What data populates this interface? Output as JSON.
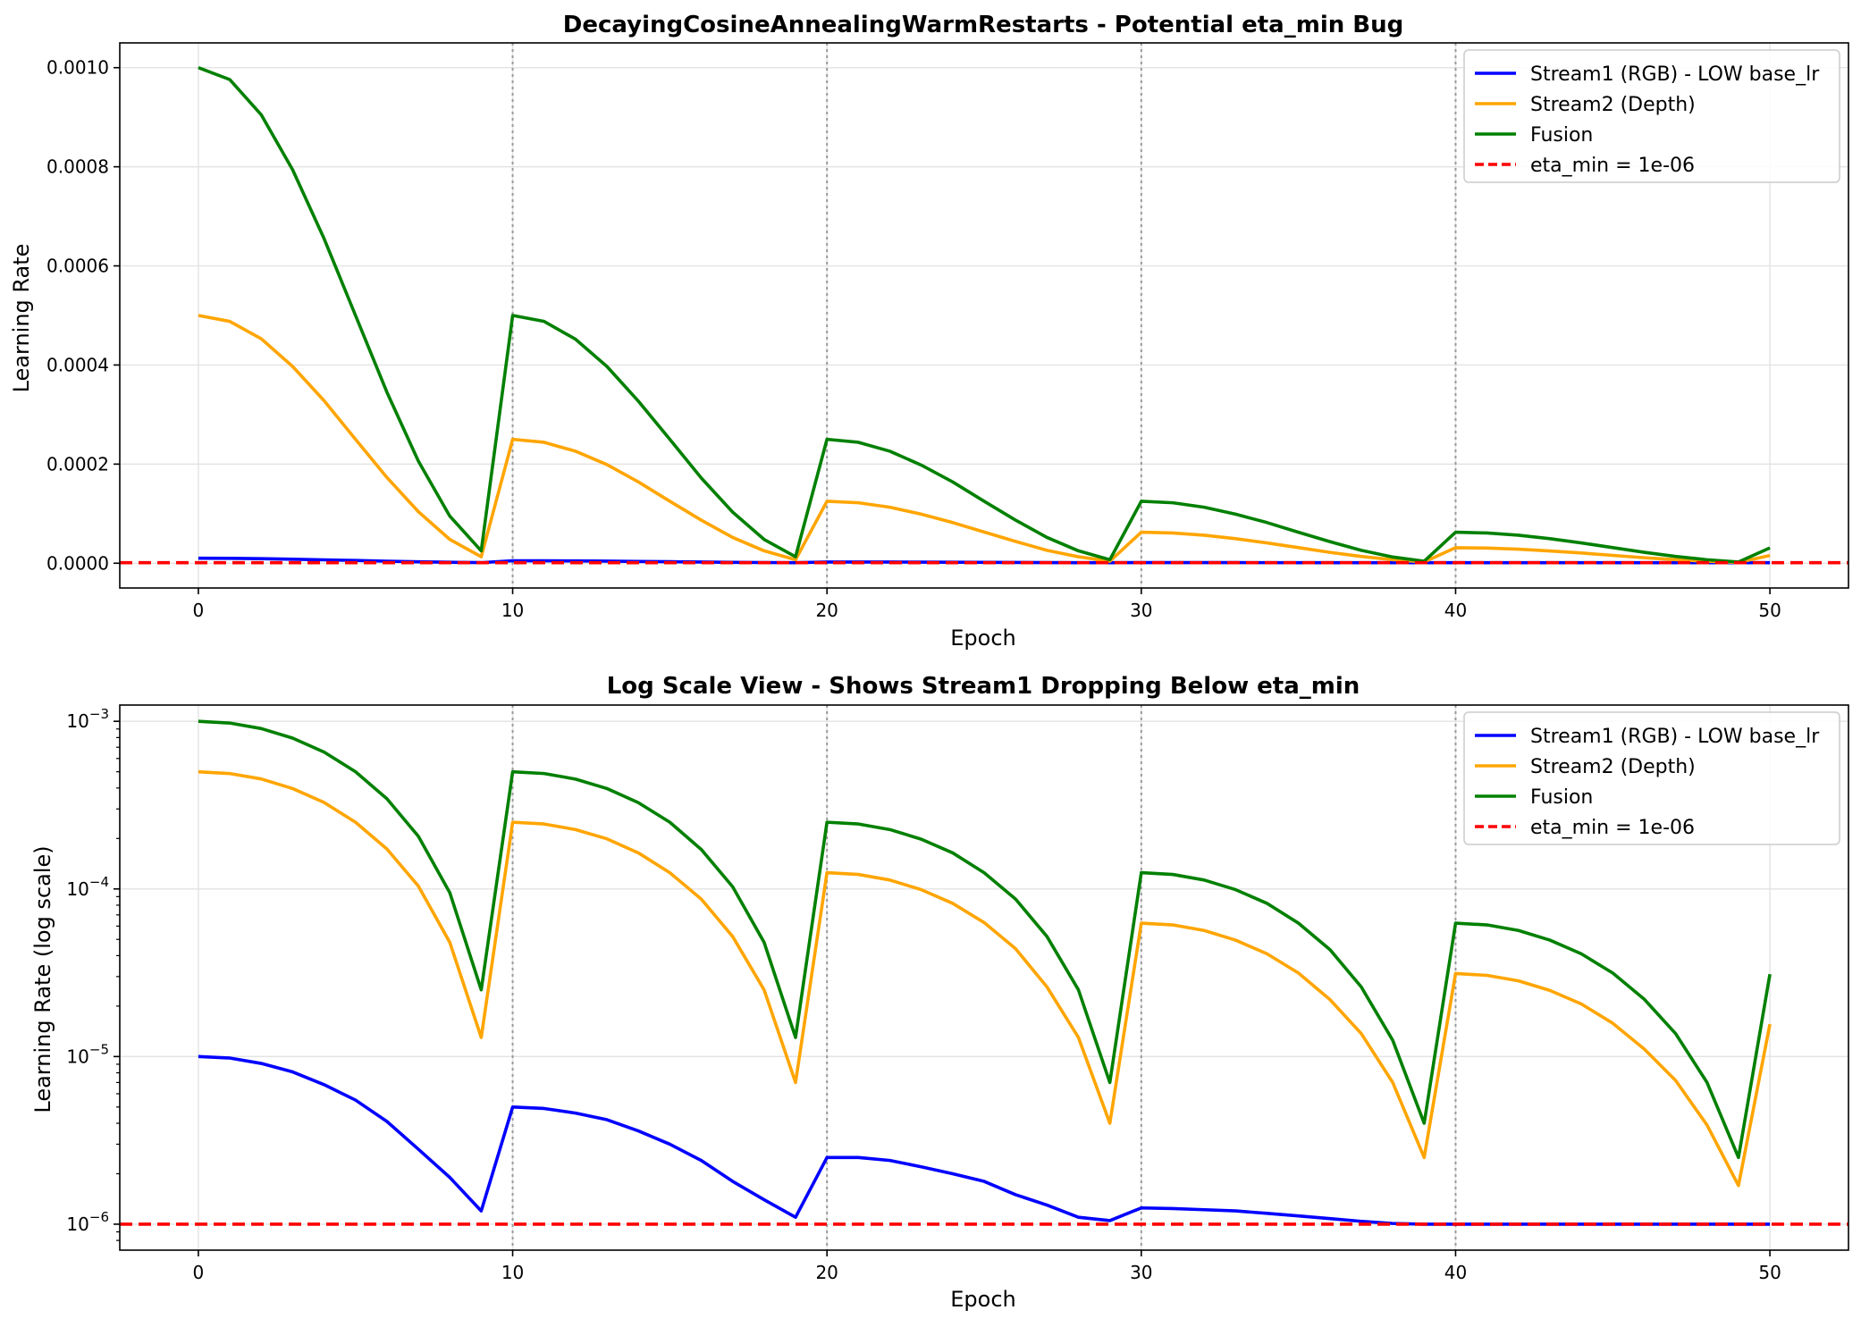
{
  "chart_data": [
    {
      "type": "line",
      "title": "DecayingCosineAnnealingWarmRestarts - Potential eta_min Bug",
      "xlabel": "Epoch",
      "ylabel": "Learning Rate",
      "yscale": "linear",
      "xlim": [
        -2.5,
        52.5
      ],
      "ylim": [
        -5e-05,
        0.00105
      ],
      "xticks": [
        0,
        10,
        20,
        30,
        40,
        50
      ],
      "xtick_labels": [
        "0",
        "10",
        "20",
        "30",
        "40",
        "50"
      ],
      "yticks": [
        0,
        0.0002,
        0.0004,
        0.0006,
        0.0008,
        0.001
      ],
      "ytick_labels": [
        "0.0000",
        "0.0002",
        "0.0004",
        "0.0006",
        "0.0008",
        "0.0010"
      ],
      "restart_lines": [
        10,
        20,
        30,
        40
      ],
      "grid": true,
      "legend_position": "top-right",
      "legend": [
        {
          "label": "Stream1 (RGB) - LOW base_lr",
          "color": "#0000ff",
          "dash": false
        },
        {
          "label": "Stream2 (Depth)",
          "color": "#ffa500",
          "dash": false
        },
        {
          "label": "Fusion",
          "color": "#008000",
          "dash": false
        },
        {
          "label": "eta_min = 1e-06",
          "color": "#ff0000",
          "dash": true
        }
      ],
      "eta_min": 1e-06,
      "series_source": "shared"
    },
    {
      "type": "line",
      "title": "Log Scale View - Shows Stream1 Dropping Below eta_min",
      "xlabel": "Epoch",
      "ylabel": "Learning Rate (log scale)",
      "yscale": "log",
      "xlim": [
        -2.5,
        52.5
      ],
      "ylim": [
        7e-07,
        0.00125
      ],
      "xticks": [
        0,
        10,
        20,
        30,
        40,
        50
      ],
      "xtick_labels": [
        "0",
        "10",
        "20",
        "30",
        "40",
        "50"
      ],
      "yticks": [
        1e-06,
        1e-05,
        0.0001,
        0.001
      ],
      "ytick_labels": [
        {
          "base": "10",
          "exp": "−6"
        },
        {
          "base": "10",
          "exp": "−5"
        },
        {
          "base": "10",
          "exp": "−4"
        },
        {
          "base": "10",
          "exp": "−3"
        }
      ],
      "restart_lines": [
        10,
        20,
        30,
        40
      ],
      "grid": true,
      "legend_position": "top-right",
      "legend": [
        {
          "label": "Stream1 (RGB) - LOW base_lr",
          "color": "#0000ff",
          "dash": false
        },
        {
          "label": "Stream2 (Depth)",
          "color": "#ffa500",
          "dash": false
        },
        {
          "label": "Fusion",
          "color": "#008000",
          "dash": false
        },
        {
          "label": "eta_min = 1e-06",
          "color": "#ff0000",
          "dash": true
        }
      ],
      "eta_min": 1e-06,
      "series_source": "shared"
    }
  ],
  "series": [
    {
      "name": "Stream1 (RGB) - LOW base_lr",
      "color": "#0000ff",
      "x": [
        0,
        1,
        2,
        3,
        4,
        5,
        6,
        7,
        8,
        9,
        10,
        11,
        12,
        13,
        14,
        15,
        16,
        17,
        18,
        19,
        20,
        21,
        22,
        23,
        24,
        25,
        26,
        27,
        28,
        29,
        30,
        31,
        32,
        33,
        34,
        35,
        36,
        37,
        38,
        39,
        40,
        41,
        42,
        43,
        44,
        45,
        46,
        47,
        48,
        49,
        50
      ],
      "y": [
        1e-05,
        9.8e-06,
        9.1e-06,
        8.1e-06,
        6.8e-06,
        5.5e-06,
        4.1e-06,
        2.8e-06,
        1.9e-06,
        1.2e-06,
        5e-06,
        4.9e-06,
        4.6e-06,
        4.2e-06,
        3.6e-06,
        3e-06,
        2.4e-06,
        1.8e-06,
        1.4e-06,
        1.1e-06,
        2.5e-06,
        2.5e-06,
        2.4e-06,
        2.2e-06,
        2e-06,
        1.8e-06,
        1.5e-06,
        1.3e-06,
        1.1e-06,
        1.05e-06,
        1.25e-06,
        1.24e-06,
        1.22e-06,
        1.2e-06,
        1.16e-06,
        1.12e-06,
        1.08e-06,
        1.04e-06,
        1.01e-06,
        1e-06,
        1e-06,
        1e-06,
        1e-06,
        1e-06,
        1e-06,
        1e-06,
        1e-06,
        1e-06,
        1e-06,
        1e-06,
        1e-06
      ]
    },
    {
      "name": "Stream2 (Depth)",
      "color": "#ffa500",
      "x": [
        0,
        1,
        2,
        3,
        4,
        5,
        6,
        7,
        8,
        9,
        10,
        11,
        12,
        13,
        14,
        15,
        16,
        17,
        18,
        19,
        20,
        21,
        22,
        23,
        24,
        25,
        26,
        27,
        28,
        29,
        30,
        31,
        32,
        33,
        34,
        35,
        36,
        37,
        38,
        39,
        40,
        41,
        42,
        43,
        44,
        45,
        46,
        47,
        48,
        49,
        50
      ],
      "y": [
        0.0005,
        0.000488,
        0.000453,
        0.000397,
        0.000328,
        0.00025,
        0.000173,
        0.000104,
        4.8e-05,
        1.3e-05,
        0.00025,
        0.000244,
        0.000226,
        0.000199,
        0.000164,
        0.000125,
        8.7e-05,
        5.2e-05,
        2.5e-05,
        7e-06,
        0.000125,
        0.000122,
        0.000113,
        9.9e-05,
        8.2e-05,
        6.3e-05,
        4.4e-05,
        2.6e-05,
        1.3e-05,
        4e-06,
        6.25e-05,
        6.1e-05,
        5.65e-05,
        4.95e-05,
        4.1e-05,
        3.15e-05,
        2.19e-05,
        1.37e-05,
        7e-06,
        2.5e-06,
        3.13e-05,
        3.05e-05,
        2.83e-05,
        2.48e-05,
        2.06e-05,
        1.58e-05,
        1.11e-05,
        7.2e-06,
        3.9e-06,
        1.7e-06,
        1.56e-05
      ]
    },
    {
      "name": "Fusion",
      "color": "#008000",
      "x": [
        0,
        1,
        2,
        3,
        4,
        5,
        6,
        7,
        8,
        9,
        10,
        11,
        12,
        13,
        14,
        15,
        16,
        17,
        18,
        19,
        20,
        21,
        22,
        23,
        24,
        25,
        26,
        27,
        28,
        29,
        30,
        31,
        32,
        33,
        34,
        35,
        36,
        37,
        38,
        39,
        40,
        41,
        42,
        43,
        44,
        45,
        46,
        47,
        48,
        49,
        50
      ],
      "y": [
        0.001,
        0.000976,
        0.000905,
        0.000794,
        0.000655,
        0.0005,
        0.000345,
        0.000206,
        9.5e-05,
        2.5e-05,
        0.0005,
        0.000488,
        0.000452,
        0.000397,
        0.000327,
        0.00025,
        0.000172,
        0.000103,
        4.8e-05,
        1.3e-05,
        0.00025,
        0.000244,
        0.000226,
        0.000198,
        0.000164,
        0.000125,
        8.7e-05,
        5.2e-05,
        2.5e-05,
        7e-06,
        0.000125,
        0.000122,
        0.000113,
        9.9e-05,
        8.2e-05,
        6.25e-05,
        4.35e-05,
        2.6e-05,
        1.25e-05,
        4e-06,
        6.25e-05,
        6.1e-05,
        5.65e-05,
        4.95e-05,
        4.1e-05,
        3.15e-05,
        2.2e-05,
        1.37e-05,
        7e-06,
        2.5e-06,
        3.1e-05
      ]
    }
  ]
}
